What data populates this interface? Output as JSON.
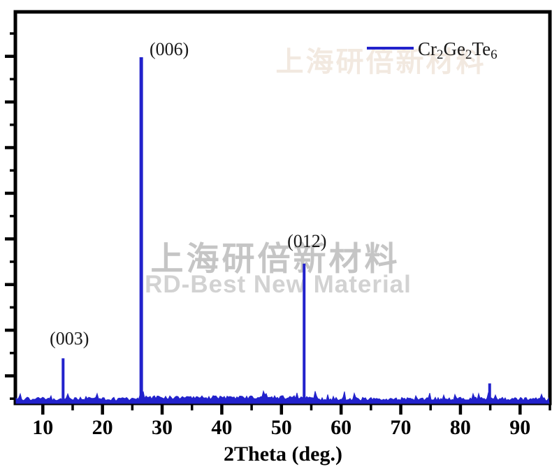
{
  "chart_data": {
    "type": "line",
    "chart_kind": "XRD powder diffraction pattern",
    "title": "",
    "xlabel": "2Theta (deg.)",
    "ylabel": "",
    "xlim": [
      5.4,
      95.0
    ],
    "ylim_intensity_pct": [
      0,
      106
    ],
    "grid": false,
    "x_tick_labels": [
      "10",
      "20",
      "30",
      "40",
      "50",
      "60",
      "70",
      "80",
      "90"
    ],
    "x_major_ticks": [
      10,
      20,
      30,
      40,
      50,
      60,
      70,
      80,
      90
    ],
    "x_minor_ticks": [
      15,
      25,
      35,
      45,
      55,
      65,
      75,
      85,
      95
    ],
    "y_axis": {
      "labels_visible": false,
      "tick_style": "alternating major/minor, outside left"
    },
    "legend": {
      "position": "top-right",
      "entries": [
        {
          "label": "Cr2Ge2Te6",
          "color": "#2222cc",
          "formula_segments": [
            {
              "text": "Cr",
              "sub": false
            },
            {
              "text": "2",
              "sub": true
            },
            {
              "text": "Ge",
              "sub": false
            },
            {
              "text": "2",
              "sub": true
            },
            {
              "text": "Te",
              "sub": false
            },
            {
              "text": "6",
              "sub": true
            }
          ]
        }
      ]
    },
    "series": [
      {
        "name": "Cr2Ge2Te6",
        "color": "#2222cc",
        "baseline_noise_pct": 1.5,
        "peaks": [
          {
            "two_theta": 13.4,
            "intensity_pct": 12.5,
            "label": "(003)",
            "label_offset": [
              9,
              -20
            ]
          },
          {
            "two_theta": 26.5,
            "intensity_pct": 100.0,
            "label": "(006)",
            "label_offset": [
              40,
              -3
            ]
          },
          {
            "two_theta": 53.8,
            "intensity_pct": 40.0,
            "label": "(012)",
            "label_offset": [
              4,
              -24
            ]
          },
          {
            "two_theta": 84.9,
            "intensity_pct": 5.2,
            "label": "",
            "label_offset": [
              0,
              0
            ]
          }
        ]
      }
    ]
  },
  "watermark": {
    "line1": "上海研倍新材料",
    "line2": "RD-Best New Material",
    "color_line1": "#c5c5c5",
    "color_line2": "#d2d2d2"
  },
  "colors": {
    "curve": "#2222cc",
    "axis": "#000000",
    "text": "#111111",
    "background": "#ffffff"
  }
}
